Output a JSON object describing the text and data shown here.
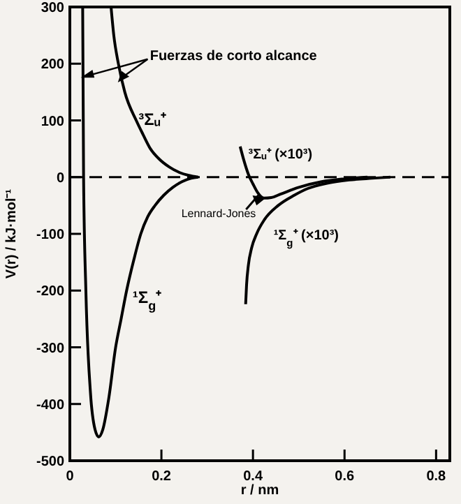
{
  "chart_data": {
    "type": "line",
    "xlabel": "r / nm",
    "ylabel": "V(r) / kJ·mol⁻¹",
    "xlim": [
      0,
      0.83
    ],
    "ylim": [
      -500,
      300
    ],
    "xticks": [
      0,
      0.2,
      0.4,
      0.6,
      0.8
    ],
    "yticks": [
      -500,
      -400,
      -300,
      -200,
      -100,
      0,
      100,
      200,
      300
    ],
    "grid": false,
    "marker": "none",
    "line_style": "solid",
    "series": [
      {
        "name": "¹Σ$_{g}$⁺",
        "color": "#000000",
        "x": [
          0.028,
          0.03,
          0.035,
          0.045,
          0.055,
          0.063,
          0.072,
          0.085,
          0.1,
          0.112,
          0.124,
          0.14,
          0.155,
          0.17,
          0.186,
          0.205,
          0.225,
          0.245,
          0.265,
          0.28
        ],
        "values": [
          300,
          0,
          -200,
          -380,
          -445,
          -458,
          -445,
          -390,
          -300,
          -250,
          -200,
          -145,
          -100,
          -70,
          -50,
          -32,
          -18,
          -8,
          -2,
          0
        ]
      },
      {
        "name": "³Σᵤ⁺",
        "color": "#000000",
        "x": [
          0.09,
          0.096,
          0.106,
          0.12,
          0.145,
          0.16,
          0.176,
          0.195,
          0.217,
          0.24,
          0.26,
          0.28
        ],
        "values": [
          300,
          250,
          200,
          150,
          100,
          75,
          50,
          32,
          18,
          8,
          3,
          0
        ]
      },
      {
        "name": "³Σᵤ⁺ (×10³)",
        "color": "#000000",
        "x": [
          0.372,
          0.38,
          0.39,
          0.4,
          0.41,
          0.424,
          0.44,
          0.46,
          0.5,
          0.55,
          0.6,
          0.65
        ],
        "values": [
          54,
          30,
          5,
          -12,
          -27,
          -37,
          -36,
          -30,
          -18,
          -8,
          -3,
          0
        ]
      },
      {
        "name": "¹Σ$_{g}$⁺ (×10³)",
        "color": "#000000",
        "x": [
          0.384,
          0.386,
          0.39,
          0.397,
          0.408,
          0.425,
          0.455,
          0.49,
          0.52,
          0.56,
          0.61,
          0.66,
          0.7
        ],
        "values": [
          -224,
          -190,
          -155,
          -125,
          -100,
          -75,
          -50,
          -32,
          -20,
          -11,
          -5,
          -2,
          0
        ]
      }
    ],
    "ref_lines": [
      {
        "axis": "y",
        "value": 0,
        "line_style": "dashed",
        "color": "#000000"
      }
    ],
    "annotations": [
      {
        "text": "Fuerzas de corto alcance",
        "x": 0.03,
        "y": 177
      },
      {
        "text": "Lennard-Jones",
        "x": 0.424,
        "y": -37
      }
    ]
  }
}
